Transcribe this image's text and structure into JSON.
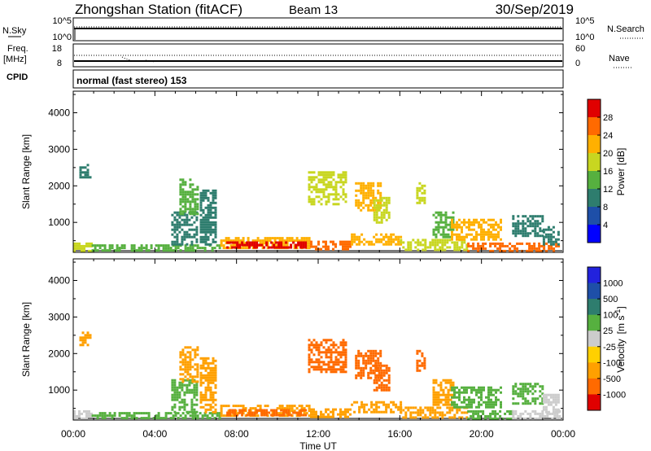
{
  "header": {
    "station": "Zhongshan Station (fitACF)",
    "beam": "Beam 13",
    "date": "30/Sep/2019"
  },
  "param_panels": {
    "nsky_label": "N.Sky",
    "nsearch_label": "N.Search",
    "nsky_ticks": [
      "10^5",
      "10^0"
    ],
    "nsearch_ticks": [
      "10^5",
      "10^0"
    ],
    "freq_label_line1": "Freq.",
    "freq_label_line2": "[MHz]",
    "freq_ticks": [
      "18",
      "8"
    ],
    "nave_label": "Nave",
    "nave_ticks": [
      "60",
      "0"
    ],
    "cpid_label": "CPID",
    "cpid_text": "normal (fast stereo) 153"
  },
  "chart_data": [
    {
      "type": "heatmap",
      "quantity": "Power",
      "colorbar_label": "Power [dB]",
      "colorbar_ticks": [
        "28",
        "24",
        "20",
        "16",
        "12",
        "8",
        "4"
      ],
      "colorbar_range": [
        0,
        30
      ],
      "colorbar_colors": [
        "#0000ff",
        "#1e4fa8",
        "#2e7d6e",
        "#56b03f",
        "#c8d620",
        "#ffb000",
        "#ff6a00",
        "#e00000"
      ],
      "ylabel": "Slant Range [km]",
      "yticks": [
        1000,
        2000,
        3000,
        4000
      ],
      "ylim": [
        180,
        4590
      ],
      "xlim": [
        0,
        24
      ],
      "xticks": [
        "00:00",
        "04:00",
        "08:00",
        "12:00",
        "16:00",
        "20:00",
        "00:00"
      ],
      "regions": [
        {
          "t0": 0.0,
          "t1": 0.9,
          "r0": 200,
          "r1": 450,
          "value": 16
        },
        {
          "t0": 0.9,
          "t1": 7.2,
          "r0": 200,
          "r1": 400,
          "value": 12
        },
        {
          "t0": 7.2,
          "t1": 11.6,
          "r0": 280,
          "r1": 600,
          "value": 20
        },
        {
          "t0": 7.5,
          "t1": 11.4,
          "r0": 280,
          "r1": 480,
          "value": 28
        },
        {
          "t0": 11.6,
          "t1": 13.6,
          "r0": 280,
          "r1": 500,
          "value": 24
        },
        {
          "t0": 13.6,
          "t1": 16.0,
          "r0": 400,
          "r1": 700,
          "value": 20
        },
        {
          "t0": 16.0,
          "t1": 19.3,
          "r0": 280,
          "r1": 550,
          "value": 16
        },
        {
          "t0": 19.3,
          "t1": 23.8,
          "r0": 230,
          "r1": 450,
          "value": 24
        },
        {
          "t0": 4.8,
          "t1": 6.0,
          "r0": 400,
          "r1": 1300,
          "value": 8
        },
        {
          "t0": 5.2,
          "t1": 6.1,
          "r0": 1200,
          "r1": 2200,
          "value": 12
        },
        {
          "t0": 6.2,
          "t1": 7.0,
          "r0": 400,
          "r1": 1900,
          "value": 8
        },
        {
          "t0": 11.5,
          "t1": 13.4,
          "r0": 1500,
          "r1": 2400,
          "value": 16
        },
        {
          "t0": 13.8,
          "t1": 15.0,
          "r0": 1300,
          "r1": 2100,
          "value": 20
        },
        {
          "t0": 14.7,
          "t1": 15.5,
          "r0": 1000,
          "r1": 1700,
          "value": 16
        },
        {
          "t0": 16.8,
          "t1": 17.2,
          "r0": 1500,
          "r1": 2100,
          "value": 16
        },
        {
          "t0": 17.6,
          "t1": 18.6,
          "r0": 600,
          "r1": 1300,
          "value": 12
        },
        {
          "t0": 18.5,
          "t1": 21.0,
          "r0": 500,
          "r1": 1100,
          "value": 20
        },
        {
          "t0": 21.5,
          "t1": 23.0,
          "r0": 600,
          "r1": 1200,
          "value": 8
        },
        {
          "t0": 23.0,
          "t1": 23.8,
          "r0": 400,
          "r1": 900,
          "value": 8
        },
        {
          "t0": 0.3,
          "t1": 0.8,
          "r0": 2200,
          "r1": 2600,
          "value": 8
        }
      ]
    },
    {
      "type": "heatmap",
      "quantity": "Velocity",
      "colorbar_label": "Velocity [m s-1]",
      "colorbar_label_main": "Velocity",
      "colorbar_label_unit": "[m s",
      "colorbar_label_exp": "-1",
      "colorbar_label_close": "]",
      "colorbar_ticks": [
        "1000",
        "500",
        "100",
        "25",
        "-25",
        "-100",
        "-500",
        "-1000"
      ],
      "colorbar_colors": [
        "#e00000",
        "#ff6a00",
        "#ffa000",
        "#ffd000",
        "#cccccc",
        "#56b03f",
        "#2e7d6e",
        "#1e4fa8",
        "#2222dd"
      ],
      "ylabel": "Slant Range [km]",
      "yticks": [
        1000,
        2000,
        3000,
        4000
      ],
      "ylim": [
        180,
        4590
      ],
      "xlim": [
        0,
        24
      ],
      "xlabel": "Time UT",
      "xticks": [
        "00:00",
        "04:00",
        "08:00",
        "12:00",
        "16:00",
        "20:00",
        "00:00"
      ],
      "regions": [
        {
          "t0": 0.0,
          "t1": 0.9,
          "r0": 200,
          "r1": 450,
          "value": 25
        },
        {
          "t0": 0.9,
          "t1": 7.2,
          "r0": 200,
          "r1": 400,
          "value": 100
        },
        {
          "t0": 7.2,
          "t1": 11.6,
          "r0": 280,
          "r1": 600,
          "value": -300
        },
        {
          "t0": 7.5,
          "t1": 11.4,
          "r0": 280,
          "r1": 480,
          "value": -600
        },
        {
          "t0": 11.6,
          "t1": 13.6,
          "r0": 280,
          "r1": 500,
          "value": -300
        },
        {
          "t0": 13.6,
          "t1": 16.0,
          "r0": 400,
          "r1": 700,
          "value": -300
        },
        {
          "t0": 16.0,
          "t1": 19.3,
          "r0": 280,
          "r1": 550,
          "value": -200
        },
        {
          "t0": 19.3,
          "t1": 21.5,
          "r0": 230,
          "r1": 450,
          "value": 100
        },
        {
          "t0": 21.5,
          "t1": 23.8,
          "r0": 230,
          "r1": 450,
          "value": 25
        },
        {
          "t0": 4.8,
          "t1": 6.0,
          "r0": 400,
          "r1": 1300,
          "value": 100
        },
        {
          "t0": 5.2,
          "t1": 6.1,
          "r0": 1200,
          "r1": 2200,
          "value": -300
        },
        {
          "t0": 6.2,
          "t1": 7.0,
          "r0": 400,
          "r1": 1900,
          "value": -300
        },
        {
          "t0": 11.5,
          "t1": 13.4,
          "r0": 1500,
          "r1": 2400,
          "value": -600
        },
        {
          "t0": 13.8,
          "t1": 15.0,
          "r0": 1300,
          "r1": 2100,
          "value": -600
        },
        {
          "t0": 14.7,
          "t1": 15.5,
          "r0": 1000,
          "r1": 1700,
          "value": -600
        },
        {
          "t0": 16.8,
          "t1": 17.2,
          "r0": 1500,
          "r1": 2100,
          "value": -600
        },
        {
          "t0": 17.6,
          "t1": 18.6,
          "r0": 600,
          "r1": 1300,
          "value": -200
        },
        {
          "t0": 18.5,
          "t1": 21.0,
          "r0": 500,
          "r1": 1100,
          "value": 100
        },
        {
          "t0": 21.5,
          "t1": 23.0,
          "r0": 600,
          "r1": 1200,
          "value": 100
        },
        {
          "t0": 23.0,
          "t1": 23.8,
          "r0": 400,
          "r1": 900,
          "value": 25
        },
        {
          "t0": 0.3,
          "t1": 0.8,
          "r0": 2200,
          "r1": 2600,
          "value": -200
        }
      ]
    }
  ]
}
